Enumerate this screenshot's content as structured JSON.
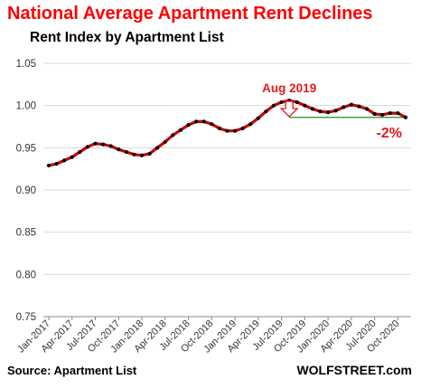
{
  "title": "National Average Apartment Rent Declines",
  "subtitle": "Rent Index by Apartment List",
  "source": "Source: Apartment List",
  "brand": "WOLFSTREET.com",
  "colors": {
    "line": "#cc0000",
    "marker": "#000000",
    "annotation": "#e31b1b",
    "reference": "#228b22",
    "grid": "#d9d9d9"
  },
  "chart_data": {
    "type": "line",
    "title": "National Average Apartment Rent Declines",
    "subtitle": "Rent Index by Apartment List",
    "xlabel": "",
    "ylabel": "",
    "ylim": [
      0.75,
      1.05
    ],
    "yticks": [
      "0.75",
      "0.80",
      "0.85",
      "0.90",
      "0.95",
      "1.00",
      "1.05"
    ],
    "grid": "horizontal",
    "xticks": [
      "Jan-2017",
      "Apr-2017",
      "Jul-2017",
      "Oct-2017",
      "Jan-2018",
      "Apr-2018",
      "Jul-2018",
      "Oct-2018",
      "Jan-2019",
      "Apr-2019",
      "Jul-2019",
      "Oct-2019",
      "Jan-2020",
      "Apr-2020",
      "Jul-2020",
      "Oct-2020"
    ],
    "x": [
      "Jan-2017",
      "Feb-2017",
      "Mar-2017",
      "Apr-2017",
      "May-2017",
      "Jun-2017",
      "Jul-2017",
      "Aug-2017",
      "Sep-2017",
      "Oct-2017",
      "Nov-2017",
      "Dec-2017",
      "Jan-2018",
      "Feb-2018",
      "Mar-2018",
      "Apr-2018",
      "May-2018",
      "Jun-2018",
      "Jul-2018",
      "Aug-2018",
      "Sep-2018",
      "Oct-2018",
      "Nov-2018",
      "Dec-2018",
      "Jan-2019",
      "Feb-2019",
      "Mar-2019",
      "Apr-2019",
      "May-2019",
      "Jun-2019",
      "Jul-2019",
      "Aug-2019",
      "Sep-2019",
      "Oct-2019",
      "Nov-2019",
      "Dec-2019",
      "Jan-2020",
      "Feb-2020",
      "Mar-2020",
      "Apr-2020",
      "May-2020",
      "Jun-2020",
      "Jul-2020",
      "Aug-2020",
      "Sep-2020",
      "Oct-2020",
      "Nov-2020"
    ],
    "series": [
      {
        "values": [
          0.929,
          0.931,
          0.935,
          0.939,
          0.945,
          0.951,
          0.955,
          0.954,
          0.952,
          0.948,
          0.945,
          0.942,
          0.941,
          0.943,
          0.95,
          0.957,
          0.965,
          0.971,
          0.977,
          0.981,
          0.981,
          0.978,
          0.973,
          0.97,
          0.97,
          0.973,
          0.978,
          0.985,
          0.993,
          1.0,
          1.004,
          1.006,
          1.004,
          1.0,
          0.996,
          0.993,
          0.992,
          0.994,
          0.998,
          1.001,
          0.999,
          0.996,
          0.99,
          0.989,
          0.991,
          0.991,
          0.986
        ]
      }
    ],
    "annotations": [
      {
        "text": "Aug 2019",
        "x": "Aug-2019"
      },
      {
        "text": "-2%",
        "x": "Nov-2020"
      }
    ],
    "reference_line": {
      "y": 0.986,
      "from": "Aug-2019",
      "to": "Nov-2020"
    }
  }
}
